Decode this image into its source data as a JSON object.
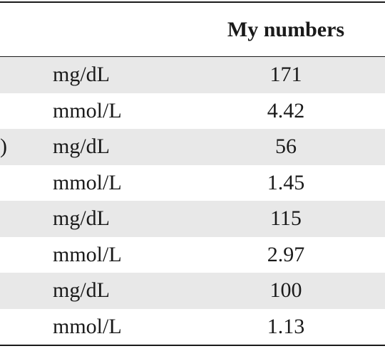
{
  "header": {
    "col_label": "",
    "col_unit": "",
    "col_value": "My numbers"
  },
  "rows": [
    {
      "label": "",
      "unit": "mg/dL",
      "value": "171",
      "shaded": true
    },
    {
      "label": "",
      "unit": "mmol/L",
      "value": "4.42",
      "shaded": false
    },
    {
      "label": ")",
      "unit": "mg/dL",
      "value": "56",
      "shaded": true
    },
    {
      "label": "",
      "unit": "mmol/L",
      "value": "1.45",
      "shaded": false
    },
    {
      "label": "",
      "unit": "mg/dL",
      "value": "115",
      "shaded": true
    },
    {
      "label": "",
      "unit": "mmol/L",
      "value": "2.97",
      "shaded": false
    },
    {
      "label": "",
      "unit": "mg/dL",
      "value": "100",
      "shaded": true
    },
    {
      "label": "",
      "unit": "mmol/L",
      "value": "1.13",
      "shaded": false
    }
  ],
  "colors": {
    "shaded_row": "#e8e8e8",
    "rule": "#1a1a1a"
  }
}
